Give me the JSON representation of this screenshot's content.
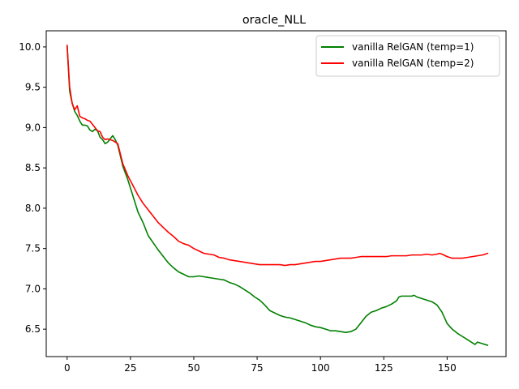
{
  "chart_data": {
    "type": "line",
    "title": "oracle_NLL",
    "xlabel": "",
    "ylabel": "",
    "xlim": [
      -8.25,
      173.25
    ],
    "ylim": [
      6.16,
      10.2
    ],
    "xticks": [
      0,
      25,
      50,
      75,
      100,
      125,
      150
    ],
    "yticks": [
      6.5,
      7.0,
      7.5,
      8.0,
      8.5,
      9.0,
      9.5,
      10.0
    ],
    "grid": false,
    "legend_position": "top-right",
    "series": [
      {
        "name": "vanilla RelGAN (temp=1)",
        "color": "#008000",
        "x": [
          0,
          1,
          2,
          3,
          4,
          5,
          6,
          7,
          8,
          9,
          10,
          11,
          12,
          13,
          14,
          15,
          16,
          17,
          18,
          19,
          20,
          22,
          24,
          26,
          28,
          30,
          32,
          34,
          36,
          38,
          40,
          42,
          44,
          46,
          48,
          50,
          52,
          54,
          56,
          58,
          60,
          62,
          64,
          66,
          68,
          70,
          72,
          74,
          76,
          78,
          80,
          82,
          84,
          86,
          88,
          90,
          92,
          94,
          96,
          98,
          100,
          102,
          104,
          106,
          108,
          110,
          112,
          114,
          116,
          118,
          120,
          122,
          124,
          126,
          128,
          130,
          131,
          132,
          134,
          136,
          137,
          138,
          140,
          142,
          144,
          146,
          148,
          150,
          152,
          154,
          156,
          158,
          160,
          161,
          162,
          164,
          166
        ],
        "y": [
          10.02,
          9.45,
          9.3,
          9.2,
          9.15,
          9.08,
          9.03,
          9.03,
          9.02,
          8.97,
          8.95,
          8.98,
          8.96,
          8.88,
          8.85,
          8.8,
          8.82,
          8.86,
          8.9,
          8.85,
          8.78,
          8.52,
          8.35,
          8.15,
          7.95,
          7.82,
          7.66,
          7.57,
          7.48,
          7.4,
          7.32,
          7.26,
          7.21,
          7.18,
          7.15,
          7.15,
          7.16,
          7.15,
          7.14,
          7.13,
          7.12,
          7.11,
          7.08,
          7.06,
          7.03,
          6.99,
          6.95,
          6.9,
          6.86,
          6.8,
          6.73,
          6.7,
          6.67,
          6.65,
          6.64,
          6.62,
          6.6,
          6.58,
          6.55,
          6.53,
          6.52,
          6.5,
          6.48,
          6.48,
          6.47,
          6.46,
          6.47,
          6.5,
          6.58,
          6.66,
          6.71,
          6.73,
          6.76,
          6.78,
          6.81,
          6.85,
          6.9,
          6.91,
          6.91,
          6.91,
          6.92,
          6.9,
          6.88,
          6.86,
          6.84,
          6.8,
          6.71,
          6.57,
          6.5,
          6.45,
          6.41,
          6.37,
          6.33,
          6.31,
          6.34,
          6.32,
          6.3
        ]
      },
      {
        "name": "vanilla RelGAN (temp=2)",
        "color": "#ff0000",
        "x": [
          0,
          1,
          2,
          3,
          4,
          5,
          6,
          7,
          8,
          9,
          10,
          11,
          12,
          13,
          14,
          15,
          16,
          17,
          18,
          19,
          20,
          22,
          24,
          26,
          28,
          30,
          32,
          34,
          36,
          38,
          40,
          42,
          44,
          46,
          48,
          50,
          52,
          54,
          56,
          58,
          60,
          62,
          64,
          66,
          68,
          70,
          72,
          74,
          76,
          78,
          80,
          82,
          84,
          86,
          88,
          90,
          92,
          94,
          96,
          98,
          100,
          102,
          104,
          106,
          108,
          110,
          112,
          114,
          116,
          118,
          120,
          122,
          124,
          126,
          128,
          130,
          132,
          134,
          136,
          138,
          140,
          142,
          144,
          146,
          147,
          148,
          150,
          152,
          154,
          156,
          158,
          160,
          162,
          164,
          166
        ],
        "y": [
          10.02,
          9.5,
          9.3,
          9.22,
          9.27,
          9.14,
          9.12,
          9.11,
          9.09,
          9.08,
          9.04,
          9.0,
          8.96,
          8.95,
          8.88,
          8.85,
          8.86,
          8.85,
          8.84,
          8.82,
          8.8,
          8.55,
          8.4,
          8.28,
          8.16,
          8.06,
          7.98,
          7.9,
          7.82,
          7.76,
          7.7,
          7.65,
          7.59,
          7.56,
          7.54,
          7.5,
          7.47,
          7.44,
          7.43,
          7.42,
          7.39,
          7.38,
          7.36,
          7.35,
          7.34,
          7.33,
          7.32,
          7.31,
          7.3,
          7.3,
          7.3,
          7.3,
          7.3,
          7.29,
          7.3,
          7.3,
          7.31,
          7.32,
          7.33,
          7.34,
          7.34,
          7.35,
          7.36,
          7.37,
          7.38,
          7.38,
          7.38,
          7.39,
          7.4,
          7.4,
          7.4,
          7.4,
          7.4,
          7.4,
          7.41,
          7.41,
          7.41,
          7.41,
          7.42,
          7.42,
          7.42,
          7.43,
          7.42,
          7.43,
          7.44,
          7.43,
          7.4,
          7.38,
          7.38,
          7.38,
          7.39,
          7.4,
          7.41,
          7.42,
          7.44
        ]
      }
    ]
  }
}
